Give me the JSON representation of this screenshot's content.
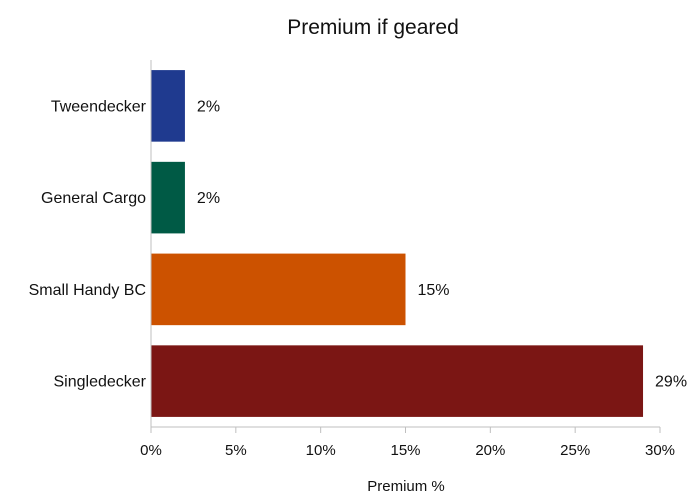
{
  "chart_data": {
    "type": "bar",
    "orientation": "horizontal",
    "title": "Premium if geared",
    "xlabel": "Premium %",
    "ylabel": "",
    "categories": [
      "Tweendecker",
      "General Cargo",
      "Small Handy BC",
      "Singledecker"
    ],
    "values": [
      2,
      2,
      15,
      29
    ],
    "data_labels": [
      "2%",
      "2%",
      "15%",
      "29%"
    ],
    "colors": [
      "#1f3a8f",
      "#005a45",
      "#cc5200",
      "#7b1614"
    ],
    "xlim": [
      0,
      30
    ],
    "x_ticks": [
      0,
      5,
      10,
      15,
      20,
      25,
      30
    ],
    "x_tick_labels": [
      "0%",
      "5%",
      "10%",
      "15%",
      "20%",
      "25%",
      "30%"
    ],
    "grid": false,
    "legend": "none"
  }
}
